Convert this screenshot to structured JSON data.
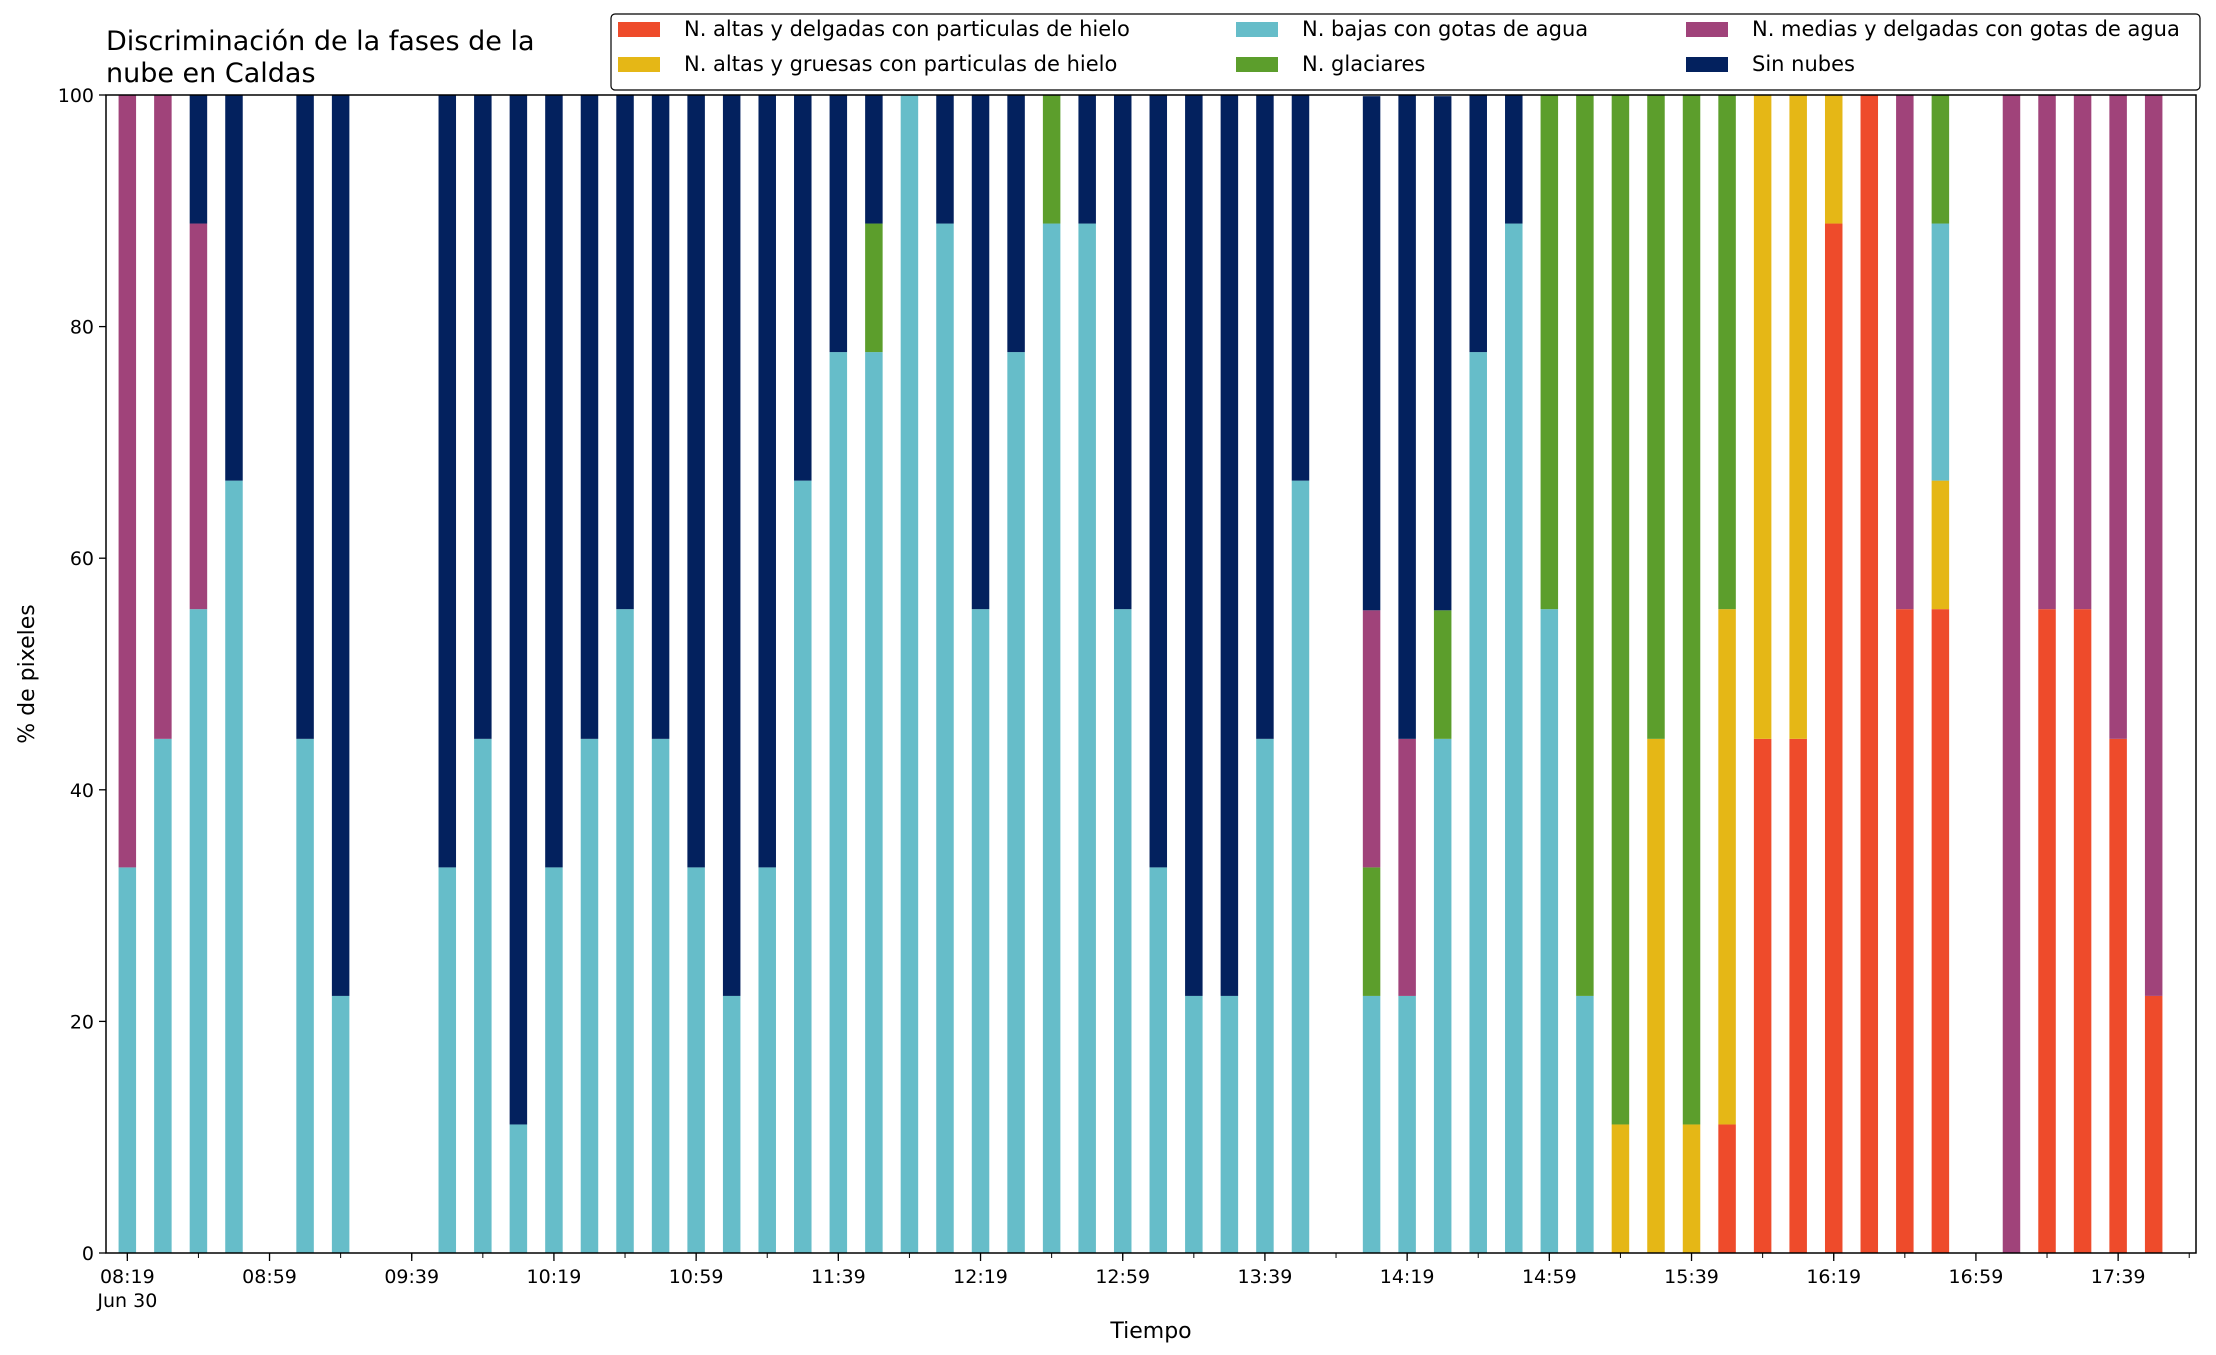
{
  "chart_data": {
    "type": "bar",
    "stacked": true,
    "title": "Discriminación de la fases de la\nnube en Caldas",
    "xlabel": "Tiempo",
    "ylabel": "% de pixeles",
    "ylim": [
      0,
      100
    ],
    "yticks": [
      0,
      20,
      40,
      60,
      80,
      100
    ],
    "grid": false,
    "legend_position": "top-right",
    "x_interval_minutes": 10,
    "x": [
      "08:19",
      "08:29",
      "08:39",
      "08:49",
      "08:59",
      "09:09",
      "09:19",
      "09:29",
      "09:39",
      "09:49",
      "09:59",
      "10:09",
      "10:19",
      "10:29",
      "10:39",
      "10:49",
      "10:59",
      "11:09",
      "11:19",
      "11:29",
      "11:39",
      "11:49",
      "11:59",
      "12:09",
      "12:19",
      "12:29",
      "12:39",
      "12:49",
      "12:59",
      "13:09",
      "13:19",
      "13:29",
      "13:39",
      "13:49",
      "13:59",
      "14:09",
      "14:19",
      "14:29",
      "14:39",
      "14:49",
      "14:59",
      "15:09",
      "15:19",
      "15:29",
      "15:39",
      "15:49",
      "15:59",
      "16:09",
      "16:19",
      "16:29",
      "16:39",
      "16:49",
      "16:59",
      "17:09",
      "17:19",
      "17:29",
      "17:39",
      "17:49"
    ],
    "x_tick_labels": [
      {
        "x": "08:19",
        "label": "08:19",
        "sublabel": "Jun 30"
      },
      {
        "x": "08:59",
        "label": "08:59"
      },
      {
        "x": "09:39",
        "label": "09:39"
      },
      {
        "x": "10:19",
        "label": "10:19"
      },
      {
        "x": "10:59",
        "label": "10:59"
      },
      {
        "x": "11:39",
        "label": "11:39"
      },
      {
        "x": "12:19",
        "label": "12:19"
      },
      {
        "x": "12:59",
        "label": "12:59"
      },
      {
        "x": "13:39",
        "label": "13:39"
      },
      {
        "x": "14:19",
        "label": "14:19"
      },
      {
        "x": "14:59",
        "label": "14:59"
      },
      {
        "x": "15:39",
        "label": "15:39"
      },
      {
        "x": "16:19",
        "label": "16:19"
      },
      {
        "x": "16:59",
        "label": "16:59"
      },
      {
        "x": "17:39",
        "label": "17:39"
      }
    ],
    "series": [
      {
        "name": "N. altas y delgadas con particulas de hielo",
        "color": "#ee4b2b",
        "values": [
          0,
          0,
          0,
          0,
          0,
          0,
          0,
          0,
          0,
          0,
          0,
          0,
          0,
          0,
          0,
          0,
          0,
          0,
          0,
          0,
          0,
          0,
          0,
          0,
          0,
          0,
          0,
          0,
          0,
          0,
          0,
          0,
          0,
          0,
          0,
          0,
          0,
          0,
          0,
          0,
          0,
          0,
          0,
          0,
          0,
          11.1,
          44.4,
          44.4,
          88.9,
          100,
          55.6,
          55.6,
          0,
          0,
          55.6,
          55.6,
          44.4,
          22.2
        ]
      },
      {
        "name": "N. altas y gruesas con particulas de hielo",
        "color": "#e5b716",
        "values": [
          0,
          0,
          0,
          0,
          0,
          0,
          0,
          0,
          0,
          0,
          0,
          0,
          0,
          0,
          0,
          0,
          0,
          0,
          0,
          0,
          0,
          0,
          0,
          0,
          0,
          0,
          0,
          0,
          0,
          0,
          0,
          0,
          0,
          0,
          0,
          0,
          0,
          0,
          0,
          0,
          0,
          0,
          11.1,
          44.4,
          11.1,
          44.5,
          55.6,
          55.6,
          11.1,
          0,
          0,
          11.1,
          0,
          0,
          0,
          0,
          0,
          0
        ]
      },
      {
        "name": "N. bajas con gotas de agua",
        "color": "#66bdc9",
        "values": [
          33.3,
          44.4,
          55.6,
          66.7,
          0,
          44.4,
          22.2,
          0,
          0,
          33.3,
          44.4,
          11.1,
          33.3,
          44.4,
          55.6,
          44.4,
          33.3,
          22.2,
          33.3,
          66.7,
          77.8,
          77.8,
          100,
          88.9,
          55.6,
          77.8,
          88.9,
          88.9,
          55.6,
          33.3,
          22.2,
          22.2,
          44.4,
          66.7,
          0,
          22.2,
          22.2,
          44.4,
          77.8,
          88.9,
          55.6,
          22.2,
          0,
          0,
          0,
          0,
          0,
          0,
          0,
          0,
          0,
          22.2,
          0,
          0,
          0,
          0,
          0,
          0
        ]
      },
      {
        "name": "N. glaciares",
        "color": "#5c9e2c",
        "values": [
          0,
          0,
          0,
          0,
          0,
          0,
          0,
          0,
          0,
          0,
          0,
          0,
          0,
          0,
          0,
          0,
          0,
          0,
          0,
          0,
          0,
          11.1,
          0,
          0,
          0,
          0,
          11.1,
          0,
          0,
          0,
          0,
          0,
          0,
          0,
          0,
          11.1,
          0,
          11.1,
          0,
          0,
          44.4,
          77.8,
          88.9,
          55.6,
          88.9,
          44.4,
          0,
          0,
          0,
          0,
          0,
          11.1,
          0,
          0,
          0,
          0,
          0,
          0
        ]
      },
      {
        "name": "N. medias y delgadas con gotas de agua",
        "color": "#a0437a",
        "values": [
          66.7,
          55.6,
          33.3,
          0,
          0,
          0,
          0,
          0,
          0,
          0,
          0,
          0,
          0,
          0,
          0,
          0,
          0,
          0,
          0,
          0,
          0,
          0,
          0,
          0,
          0,
          0,
          0,
          0,
          0,
          0,
          0,
          0,
          0,
          0,
          0,
          22.2,
          22.2,
          0,
          0,
          0,
          0,
          0,
          0,
          0,
          0,
          0,
          0,
          0,
          0,
          0,
          44.4,
          0,
          0,
          100,
          44.4,
          44.4,
          55.6,
          77.8
        ]
      },
      {
        "name": "Sin nubes",
        "color": "#03215e",
        "values": [
          0,
          0,
          11.1,
          33.3,
          0,
          55.6,
          77.8,
          0,
          0,
          66.7,
          55.6,
          88.9,
          66.7,
          55.6,
          44.4,
          55.6,
          66.7,
          77.8,
          66.7,
          33.3,
          22.2,
          11.1,
          0,
          11.1,
          44.4,
          22.2,
          0,
          11.1,
          44.4,
          66.7,
          77.8,
          77.8,
          55.6,
          33.3,
          0,
          44.4,
          55.6,
          44.4,
          22.2,
          11.1,
          0,
          0,
          0,
          0,
          0,
          0,
          0,
          0,
          0,
          0,
          0,
          0,
          0,
          0,
          0,
          0,
          0,
          0
        ]
      }
    ]
  }
}
